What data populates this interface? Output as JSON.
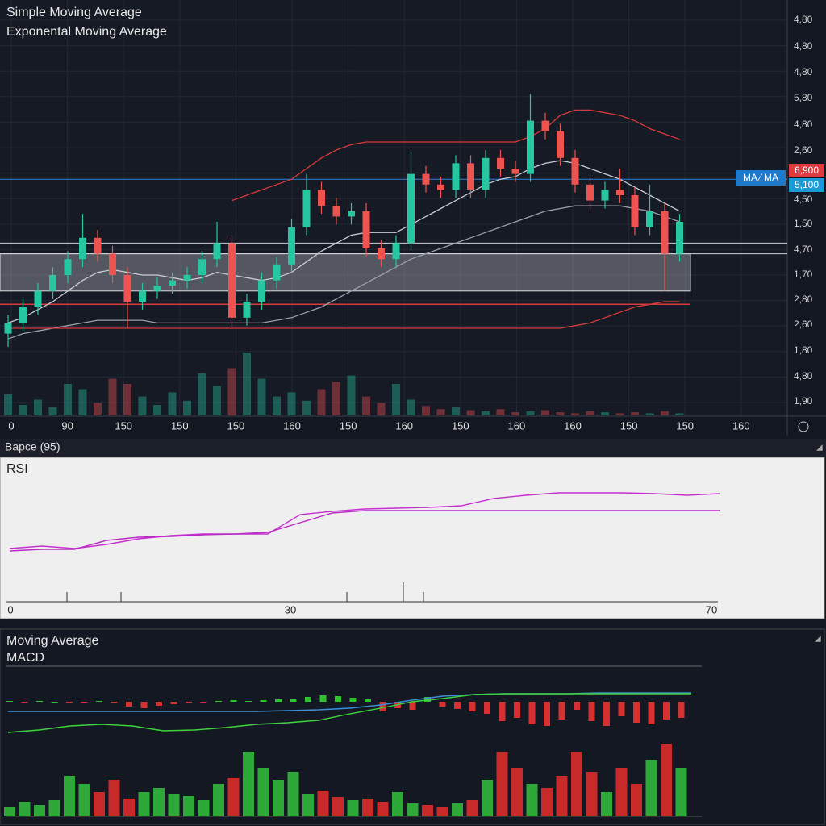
{
  "legend": [
    "Simple Moving Average",
    "Exponental Moving Average"
  ],
  "price_axis": [
    "4,80",
    "4,80",
    "4,80",
    "5,80",
    "4,80",
    "2,60",
    "4,50",
    "1,50",
    "4,70",
    "1,70",
    "2,80",
    "2,60",
    "1,80",
    "4,80",
    "1,90"
  ],
  "price_tags": {
    "ma": "MA ⁄ MA",
    "red": "6,900",
    "blue": "5,100"
  },
  "time_axis": [
    "0",
    "90",
    "150",
    "150",
    "150",
    "160",
    "150",
    "160",
    "150",
    "160",
    "160",
    "150",
    "150",
    "160"
  ],
  "chart": {
    "type": "candlestick",
    "open": [
      8,
      12,
      18,
      24,
      30,
      36,
      44,
      38,
      30,
      20,
      24,
      26,
      28,
      30,
      36,
      42,
      14,
      20,
      28,
      34,
      48,
      62,
      56,
      52,
      54,
      40,
      36,
      42,
      68,
      64,
      62,
      72,
      62,
      74,
      70,
      68,
      88,
      84,
      74,
      64,
      58,
      62,
      60,
      48,
      54,
      38
    ],
    "high": [
      15,
      21,
      27,
      33,
      39,
      53,
      47,
      41,
      33,
      27,
      29,
      31,
      33,
      39,
      50,
      45,
      23,
      31,
      37,
      51,
      68,
      65,
      59,
      57,
      57,
      43,
      45,
      76,
      71,
      67,
      75,
      75,
      77,
      77,
      73,
      98,
      91,
      87,
      77,
      67,
      65,
      70,
      63,
      64,
      57,
      53
    ],
    "low": [
      3,
      9,
      15,
      21,
      27,
      33,
      35,
      27,
      10,
      17,
      21,
      23,
      25,
      27,
      33,
      10,
      11,
      17,
      25,
      31,
      45,
      53,
      49,
      49,
      37,
      33,
      33,
      39,
      61,
      59,
      59,
      59,
      59,
      67,
      65,
      65,
      81,
      71,
      61,
      55,
      55,
      57,
      45,
      45,
      24,
      35
    ],
    "close": [
      12,
      18,
      24,
      30,
      36,
      44,
      38,
      30,
      20,
      24,
      26,
      28,
      30,
      36,
      42,
      14,
      20,
      28,
      34,
      48,
      62,
      56,
      52,
      54,
      40,
      36,
      42,
      68,
      64,
      62,
      72,
      62,
      74,
      70,
      68,
      88,
      84,
      74,
      64,
      58,
      62,
      60,
      48,
      54,
      38,
      50
    ],
    "volume": [
      20,
      10,
      15,
      8,
      30,
      25,
      12,
      35,
      30,
      18,
      10,
      22,
      14,
      40,
      28,
      45,
      60,
      35,
      18,
      22,
      14,
      25,
      32,
      38,
      18,
      12,
      30,
      15,
      9,
      6,
      8,
      5,
      4,
      6,
      3,
      4,
      5,
      3,
      2,
      4,
      3,
      2,
      3,
      2,
      4,
      2
    ],
    "lines": [
      {
        "name": "Simple Moving Average",
        "color": "#c8ccd4",
        "values": [
          12,
          14,
          17,
          20,
          24,
          28,
          31,
          32,
          31,
          30,
          30,
          29,
          28,
          29,
          31,
          30,
          29,
          28,
          29,
          31,
          35,
          39,
          42,
          45,
          46,
          46,
          46,
          49,
          52,
          55,
          58,
          61,
          64,
          66,
          67,
          70,
          72,
          73,
          72,
          70,
          68,
          66,
          63,
          60,
          57,
          54
        ]
      },
      {
        "name": "Exponental Moving Average",
        "color": "#9aa0aa",
        "values": [
          6,
          8,
          9,
          10,
          11,
          12,
          13,
          13,
          13,
          13,
          12,
          12,
          12,
          12,
          12,
          12,
          12,
          12,
          13,
          14,
          16,
          18,
          21,
          24,
          27,
          30,
          33,
          36,
          38,
          40,
          42,
          44,
          46,
          48,
          50,
          52,
          54,
          55,
          56,
          56,
          56,
          56,
          55,
          54,
          52,
          50
        ]
      },
      {
        "color": "#d83a3a",
        "values": [
          null,
          null,
          null,
          null,
          null,
          null,
          null,
          null,
          null,
          null,
          null,
          null,
          null,
          null,
          null,
          58,
          60,
          62,
          64,
          66,
          70,
          74,
          77,
          79,
          80,
          80,
          80,
          80,
          80,
          80,
          80,
          80,
          80,
          80,
          80,
          82,
          85,
          90,
          92,
          92,
          91,
          90,
          88,
          85,
          83,
          81
        ]
      },
      {
        "color": "#d83a3a",
        "values": [
          10,
          10,
          10,
          10,
          10,
          10,
          10,
          10,
          10,
          10,
          10,
          10,
          10,
          10,
          10,
          10,
          10,
          10,
          10,
          10,
          10,
          10,
          10,
          10,
          10,
          10,
          10,
          10,
          10,
          10,
          10,
          10,
          10,
          10,
          10,
          10,
          10,
          10,
          11,
          12,
          14,
          16,
          18,
          19,
          20,
          20
        ]
      }
    ],
    "levels": {
      "blue": 66,
      "white": [
        42,
        38
      ],
      "red": 19,
      "zone": [
        24,
        38
      ]
    }
  },
  "rsi_panel": {
    "title": "Bapce (95)",
    "label": "RSI",
    "x_labels": [
      "0",
      "30",
      "70"
    ],
    "ylim": [
      0,
      160
    ],
    "series": [
      {
        "color": "#c62fd0",
        "values": [
          60,
          63,
          60,
          65,
          72,
          76,
          78,
          78,
          78,
          102,
          106,
          109,
          110,
          111,
          113,
          122,
          126,
          129,
          129,
          129,
          128,
          126,
          128
        ]
      },
      {
        "color": "#b82bc4",
        "values": [
          57,
          59,
          59,
          70,
          74,
          75,
          77,
          78,
          80,
          92,
          104,
          107,
          107,
          107,
          107,
          107,
          107,
          107,
          107,
          107,
          107,
          107,
          107
        ]
      }
    ]
  },
  "macd_panel": {
    "title": "Moving Average",
    "label": "MACD",
    "macd": {
      "color": "#3ed43e",
      "values": [
        -38,
        -35,
        -30,
        -28,
        -30,
        -36,
        -35,
        -32,
        -28,
        -26,
        -23,
        -15,
        -8,
        0,
        4,
        9,
        10,
        10,
        10,
        10,
        10,
        10,
        10
      ]
    },
    "signal": {
      "color": "#3b8fd8",
      "values": [
        -12,
        -12,
        -12,
        -12,
        -12,
        -12,
        -12,
        -12,
        -12,
        -11,
        -10,
        -8,
        -4,
        2,
        7,
        9,
        10,
        10,
        10,
        11,
        11,
        11,
        11
      ]
    },
    "histogram": [
      1,
      -1,
      1,
      0,
      -2,
      -1,
      1,
      -2,
      -6,
      -8,
      -5,
      -3,
      -2,
      -1,
      1,
      2,
      1,
      2,
      3,
      4,
      6,
      8,
      7,
      5,
      4,
      -12,
      -8,
      -10,
      6,
      -6,
      -9,
      -12,
      -15,
      -24,
      -20,
      -28,
      -30,
      -22,
      -10,
      -24,
      -30,
      -18,
      -26,
      -28,
      -22,
      -20
    ],
    "volume": [
      12,
      18,
      14,
      20,
      50,
      40,
      30,
      45,
      22,
      30,
      35,
      28,
      25,
      20,
      40,
      48,
      80,
      60,
      45,
      55,
      28,
      32,
      24,
      20,
      22,
      18,
      30,
      16,
      14,
      12,
      16,
      20,
      45,
      80,
      60,
      40,
      35,
      50,
      80,
      55,
      30,
      60,
      40,
      70,
      90,
      60
    ]
  }
}
